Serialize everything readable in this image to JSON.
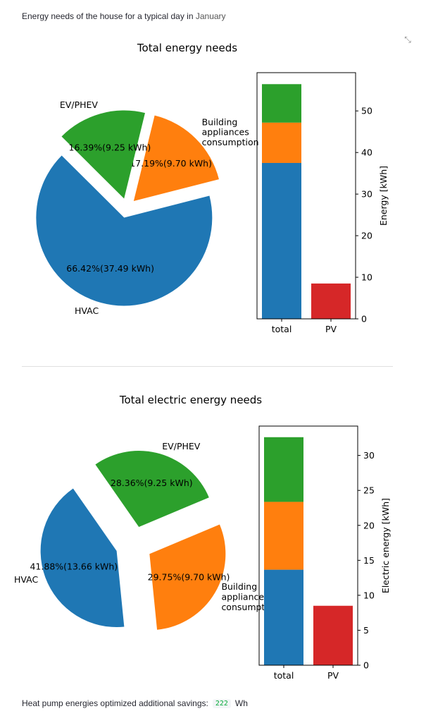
{
  "header": {
    "prefix": "Energy needs of the house for a typical day in",
    "month": "January"
  },
  "colors": {
    "hvac": "#1f77b4",
    "appliances": "#ff7f0e",
    "ev": "#2ca02c",
    "pv": "#d62728"
  },
  "expand_icon": "expand-icon",
  "chart_data": [
    {
      "type": "pie",
      "title": "Total energy needs",
      "slices": [
        {
          "label": "HVAC",
          "value": 37.49,
          "autopct": "66.42%(37.49 kWh)",
          "color": "#1f77b4"
        },
        {
          "label": "Building\nappliances\nconsumption",
          "value": 9.7,
          "autopct": "17.19%(9.70 kWh)",
          "color": "#ff7f0e"
        },
        {
          "label": "EV/PHEV",
          "value": 9.25,
          "autopct": "16.39%(9.25 kWh)",
          "color": "#2ca02c"
        }
      ]
    },
    {
      "type": "bar",
      "stacked": true,
      "categories": [
        "total",
        "PV"
      ],
      "series": [
        {
          "values": [
            37.49,
            0
          ],
          "color": "#1f77b4"
        },
        {
          "values": [
            9.7,
            0
          ],
          "color": "#ff7f0e"
        },
        {
          "values": [
            9.25,
            0
          ],
          "color": "#2ca02c"
        },
        {
          "values": [
            0,
            8.5
          ],
          "color": "#d62728"
        }
      ],
      "ylabel": "Energy [kWh]",
      "ylim": [
        0,
        59.2
      ],
      "yticks": [
        0,
        10,
        20,
        30,
        40,
        50
      ]
    },
    {
      "type": "pie",
      "title": "Total electric energy needs",
      "slices": [
        {
          "label": "HVAC",
          "value": 13.66,
          "autopct": "41.88%(13.66 kWh)",
          "color": "#1f77b4"
        },
        {
          "label": "Building\nappliances\nconsumption",
          "value": 9.7,
          "autopct": "29.75%(9.70 kWh)",
          "color": "#ff7f0e"
        },
        {
          "label": "EV/PHEV",
          "value": 9.25,
          "autopct": "28.36%(9.25 kWh)",
          "color": "#2ca02c"
        }
      ]
    },
    {
      "type": "bar",
      "stacked": true,
      "categories": [
        "total",
        "PV"
      ],
      "series": [
        {
          "values": [
            13.66,
            0
          ],
          "color": "#1f77b4"
        },
        {
          "values": [
            9.7,
            0
          ],
          "color": "#ff7f0e"
        },
        {
          "values": [
            9.25,
            0
          ],
          "color": "#2ca02c"
        },
        {
          "values": [
            0,
            8.5
          ],
          "color": "#d62728"
        }
      ],
      "ylabel": "Electric energy [kWh]",
      "ylim": [
        0,
        34.2
      ],
      "yticks": [
        0,
        5,
        10,
        15,
        20,
        25,
        30
      ]
    }
  ],
  "footer": {
    "label": "Heat pump energies optimized additional savings:",
    "value": "222",
    "unit": "Wh"
  }
}
